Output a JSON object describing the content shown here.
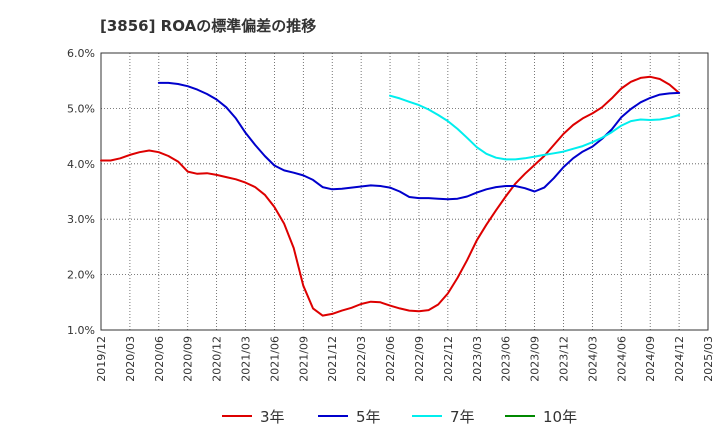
{
  "chart_data": {
    "type": "line",
    "title": "[3856]  ROAの標準偏差の推移",
    "xlabel": "",
    "ylabel": "",
    "x_ticks": [
      "2019/12",
      "2020/03",
      "2020/06",
      "2020/09",
      "2020/12",
      "2021/03",
      "2021/06",
      "2021/09",
      "2021/12",
      "2022/03",
      "2022/06",
      "2022/09",
      "2022/12",
      "2023/03",
      "2023/06",
      "2023/09",
      "2023/12",
      "2024/03",
      "2024/06",
      "2024/09",
      "2024/12",
      "2025/03"
    ],
    "y_ticks": [
      "1.0%",
      "2.0%",
      "3.0%",
      "4.0%",
      "5.0%",
      "6.0%"
    ],
    "ylim": [
      1.0,
      6.0
    ],
    "grid": true,
    "legend_position": "bottom",
    "series": [
      {
        "name": "3年",
        "color": "#dd0000",
        "x": [
          "2019/12",
          "2020/01",
          "2020/02",
          "2020/03",
          "2020/04",
          "2020/05",
          "2020/06",
          "2020/07",
          "2020/08",
          "2020/09",
          "2020/10",
          "2020/11",
          "2020/12",
          "2021/01",
          "2021/02",
          "2021/03",
          "2021/04",
          "2021/05",
          "2021/06",
          "2021/07",
          "2021/08",
          "2021/09",
          "2021/10",
          "2021/11",
          "2021/12",
          "2022/01",
          "2022/02",
          "2022/03",
          "2022/04",
          "2022/05",
          "2022/06",
          "2022/07",
          "2022/08",
          "2022/09",
          "2022/10",
          "2022/11",
          "2022/12",
          "2023/01",
          "2023/02",
          "2023/03",
          "2023/04",
          "2023/05",
          "2023/06",
          "2023/07",
          "2023/08",
          "2023/09",
          "2023/10",
          "2023/11",
          "2023/12",
          "2024/01",
          "2024/02",
          "2024/03",
          "2024/04",
          "2024/05",
          "2024/06",
          "2024/07",
          "2024/08",
          "2024/09",
          "2024/10",
          "2024/11",
          "2024/12"
        ],
        "values": [
          4.06,
          4.06,
          4.1,
          4.16,
          4.21,
          4.24,
          4.21,
          4.14,
          4.04,
          3.86,
          3.82,
          3.83,
          3.8,
          3.76,
          3.72,
          3.66,
          3.58,
          3.44,
          3.22,
          2.92,
          2.48,
          1.8,
          1.39,
          1.26,
          1.29,
          1.35,
          1.4,
          1.47,
          1.51,
          1.5,
          1.44,
          1.39,
          1.35,
          1.34,
          1.36,
          1.46,
          1.66,
          1.94,
          2.26,
          2.62,
          2.9,
          3.16,
          3.41,
          3.64,
          3.82,
          3.98,
          4.14,
          4.34,
          4.54,
          4.7,
          4.82,
          4.91,
          5.02,
          5.18,
          5.36,
          5.48,
          5.55,
          5.57,
          5.53,
          5.43,
          5.28
        ]
      },
      {
        "name": "5年",
        "color": "#0000cc",
        "x": [
          "2020/06",
          "2020/07",
          "2020/08",
          "2020/09",
          "2020/10",
          "2020/11",
          "2020/12",
          "2021/01",
          "2021/02",
          "2021/03",
          "2021/04",
          "2021/05",
          "2021/06",
          "2021/07",
          "2021/08",
          "2021/09",
          "2021/10",
          "2021/11",
          "2021/12",
          "2022/01",
          "2022/02",
          "2022/03",
          "2022/04",
          "2022/05",
          "2022/06",
          "2022/07",
          "2022/08",
          "2022/09",
          "2022/10",
          "2022/11",
          "2022/12",
          "2023/01",
          "2023/02",
          "2023/03",
          "2023/04",
          "2023/05",
          "2023/06",
          "2023/07",
          "2023/08",
          "2023/09",
          "2023/10",
          "2023/11",
          "2023/12",
          "2024/01",
          "2024/02",
          "2024/03",
          "2024/04",
          "2024/05",
          "2024/06",
          "2024/07",
          "2024/08",
          "2024/09",
          "2024/10",
          "2024/11",
          "2024/12"
        ],
        "values": [
          5.46,
          5.46,
          5.44,
          5.4,
          5.34,
          5.26,
          5.16,
          5.02,
          4.82,
          4.56,
          4.34,
          4.14,
          3.97,
          3.88,
          3.84,
          3.79,
          3.71,
          3.58,
          3.54,
          3.55,
          3.57,
          3.59,
          3.61,
          3.6,
          3.57,
          3.5,
          3.4,
          3.38,
          3.38,
          3.37,
          3.36,
          3.37,
          3.41,
          3.48,
          3.54,
          3.58,
          3.6,
          3.6,
          3.56,
          3.5,
          3.57,
          3.74,
          3.94,
          4.1,
          4.22,
          4.31,
          4.45,
          4.62,
          4.84,
          4.99,
          5.11,
          5.19,
          5.25,
          5.27,
          5.28
        ]
      },
      {
        "name": "7年",
        "color": "#00eeee",
        "x": [
          "2022/06",
          "2022/07",
          "2022/08",
          "2022/09",
          "2022/10",
          "2022/11",
          "2022/12",
          "2023/01",
          "2023/02",
          "2023/03",
          "2023/04",
          "2023/05",
          "2023/06",
          "2023/07",
          "2023/08",
          "2023/09",
          "2023/10",
          "2023/11",
          "2023/12",
          "2024/01",
          "2024/02",
          "2024/03",
          "2024/04",
          "2024/05",
          "2024/06",
          "2024/07",
          "2024/08",
          "2024/09",
          "2024/10",
          "2024/11",
          "2024/12"
        ],
        "values": [
          5.23,
          5.18,
          5.12,
          5.06,
          4.98,
          4.88,
          4.77,
          4.63,
          4.47,
          4.3,
          4.18,
          4.11,
          4.08,
          4.08,
          4.1,
          4.13,
          4.16,
          4.19,
          4.22,
          4.27,
          4.32,
          4.39,
          4.47,
          4.57,
          4.69,
          4.77,
          4.8,
          4.79,
          4.8,
          4.83,
          4.88
        ]
      },
      {
        "name": "10年",
        "color": "#008800",
        "x": [],
        "values": []
      }
    ]
  }
}
